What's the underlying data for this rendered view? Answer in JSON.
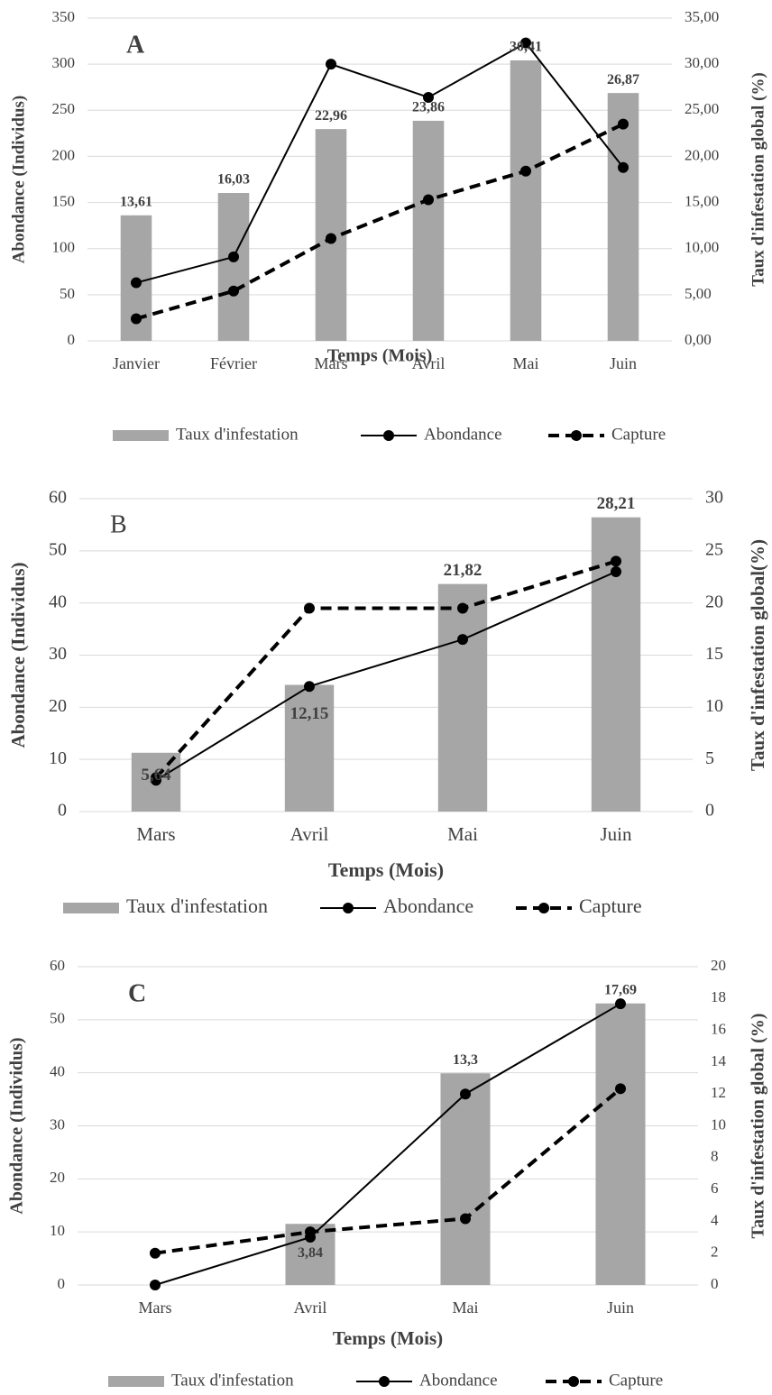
{
  "chart_data": [
    {
      "type": "combo",
      "panel_label": "A",
      "x_label": "Temps (Mois)",
      "y_label": "Abondance (Individus)",
      "y2_label": "Taux d'infestation global (%)",
      "axis_title_color": "#7f7f7f",
      "categories": [
        "Janvier",
        "Février",
        "Mars",
        "Avril",
        "Mai",
        "Juin"
      ],
      "ylim": [
        0,
        350
      ],
      "yticks": [
        0,
        50,
        100,
        150,
        200,
        250,
        300,
        350
      ],
      "y2lim": [
        0,
        35
      ],
      "y2ticks": [
        {
          "value": 0,
          "label": "0,00"
        },
        {
          "value": 5,
          "label": "5,00"
        },
        {
          "value": 10,
          "label": "10,00"
        },
        {
          "value": 15,
          "label": "15,00"
        },
        {
          "value": 20,
          "label": "20,00"
        },
        {
          "value": 25,
          "label": "25,00"
        },
        {
          "value": 30,
          "label": "30,00"
        },
        {
          "value": 35,
          "label": "35,00"
        }
      ],
      "grid": true,
      "series": [
        {
          "name": "Taux d'infestation",
          "type": "bar",
          "axis": "y2",
          "color": "#a6a6a6",
          "values": [
            13.61,
            16.03,
            22.96,
            23.86,
            30.41,
            26.87
          ],
          "value_labels": [
            "13,61",
            "16,03",
            "22,96",
            "23,86",
            "30,41",
            "26,87"
          ]
        },
        {
          "name": "Abondance",
          "type": "line",
          "color": "#000000",
          "dash": "solid",
          "values": [
            63,
            91,
            300,
            264,
            323,
            188
          ]
        },
        {
          "name": "Capture",
          "type": "line",
          "color": "#000000",
          "dash": "dashed",
          "values": [
            24,
            54,
            111,
            153,
            184,
            235
          ]
        }
      ]
    },
    {
      "type": "combo",
      "panel_label": "B",
      "x_label": "Temps (Mois)",
      "y_label": "Abondance (Individus)",
      "y2_label": "Taux d'infestation global(%)",
      "axis_title_color": "#000000",
      "categories": [
        "Mars",
        "Avril",
        "Mai",
        "Juin"
      ],
      "ylim": [
        0,
        60
      ],
      "yticks": [
        0,
        10,
        20,
        30,
        40,
        50,
        60
      ],
      "y2lim": [
        0,
        30
      ],
      "y2ticks": [
        0,
        5,
        10,
        15,
        20,
        25,
        30
      ],
      "grid": true,
      "series": [
        {
          "name": "Taux d'infestation",
          "type": "bar",
          "axis": "y2",
          "color": "#a6a6a6",
          "values": [
            5.64,
            12.15,
            21.82,
            28.21
          ],
          "value_labels": [
            "5,64",
            "12,15",
            "21,82",
            "28,21"
          ]
        },
        {
          "name": "Abondance",
          "type": "line",
          "color": "#000000",
          "dash": "solid",
          "values": [
            6,
            24,
            33,
            46
          ]
        },
        {
          "name": "Capture",
          "type": "line",
          "color": "#000000",
          "dash": "dashed",
          "values": [
            6.5,
            39,
            39,
            48
          ]
        }
      ]
    },
    {
      "type": "combo",
      "panel_label": "C",
      "x_label": "Temps (Mois)",
      "y_label": "Abondance (Individus)",
      "y2_label": "Taux d'infestation global (%)",
      "axis_title_color": "#7f7f7f",
      "categories": [
        "Mars",
        "Avril",
        "Mai",
        "Juin"
      ],
      "ylim": [
        0,
        60
      ],
      "yticks": [
        0,
        10,
        20,
        30,
        40,
        50,
        60
      ],
      "y2lim": [
        0,
        20
      ],
      "y2ticks": [
        0,
        2,
        4,
        6,
        8,
        10,
        12,
        14,
        16,
        18,
        20
      ],
      "grid": true,
      "series": [
        {
          "name": "Taux d'infestation",
          "type": "bar",
          "axis": "y2",
          "color": "#a6a6a6",
          "values": [
            null,
            3.84,
            13.3,
            17.69
          ],
          "value_labels": [
            null,
            "3,84",
            "13,3",
            "17,69"
          ]
        },
        {
          "name": "Abondance",
          "type": "line",
          "color": "#000000",
          "dash": "solid",
          "values": [
            0,
            9,
            36,
            53
          ]
        },
        {
          "name": "Capture",
          "type": "line",
          "color": "#000000",
          "dash": "dashed",
          "values": [
            6,
            10,
            12.5,
            37
          ]
        }
      ]
    }
  ]
}
